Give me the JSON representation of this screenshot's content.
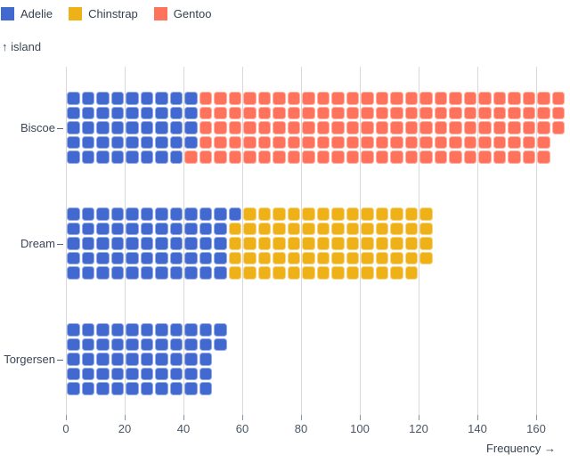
{
  "chart_data": {
    "type": "waffle",
    "variant": "horizontal-stacked-unit-chart",
    "x_label": "Frequency →",
    "y_label": "↑ island",
    "unit": 1,
    "rows_per_band": 5,
    "units_per_column": 5,
    "x_ticks": [
      0,
      20,
      40,
      60,
      80,
      100,
      120,
      140,
      160
    ],
    "x_domain": [
      0,
      170
    ],
    "grid": true,
    "legend_position": "top-left",
    "categories": [
      "Biscoe",
      "Dream",
      "Torgersen"
    ],
    "series": [
      {
        "name": "Adelie",
        "color": "#4269d0",
        "values": [
          44,
          56,
          52
        ]
      },
      {
        "name": "Chinstrap",
        "color": "#efb118",
        "values": [
          0,
          68,
          0
        ]
      },
      {
        "name": "Gentoo",
        "color": "#ff725c",
        "values": [
          124,
          0,
          0
        ]
      }
    ],
    "totals": [
      168,
      124,
      52
    ]
  },
  "legend": {
    "items": [
      {
        "label": "Adelie",
        "color": "#4269d0"
      },
      {
        "label": "Chinstrap",
        "color": "#efb118"
      },
      {
        "label": "Gentoo",
        "color": "#ff725c"
      }
    ]
  }
}
